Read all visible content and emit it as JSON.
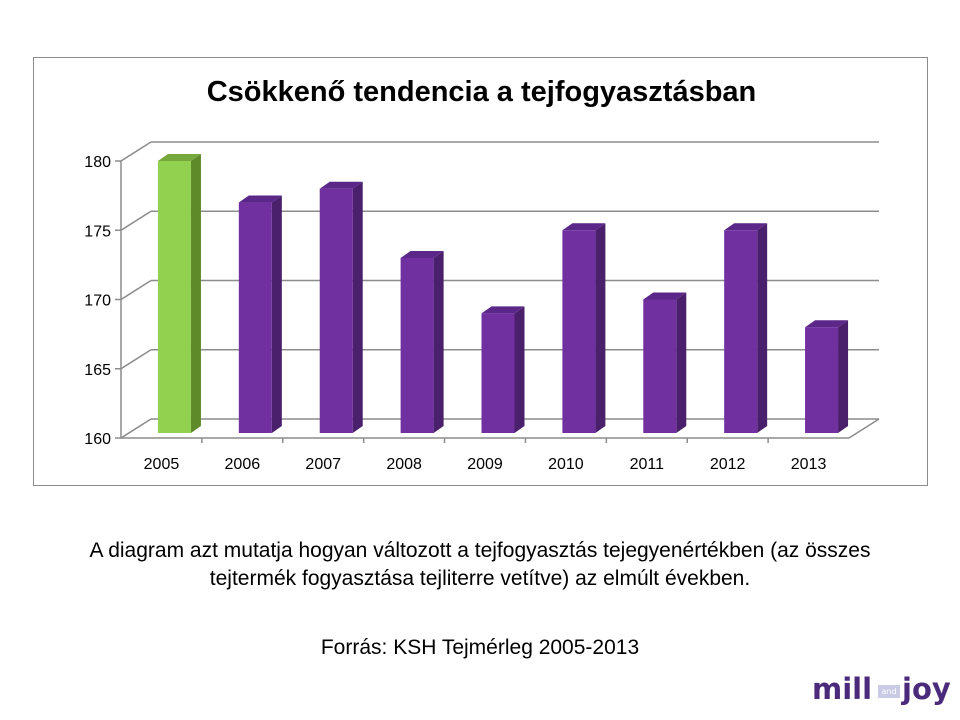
{
  "chart_data": {
    "type": "bar",
    "title": "Csökkenő tendencia a tejfogyasztásban",
    "categories": [
      "2005",
      "2006",
      "2007",
      "2008",
      "2009",
      "2010",
      "2011",
      "2012",
      "2013"
    ],
    "values": [
      180,
      177,
      178,
      173,
      169,
      175,
      170,
      175,
      168
    ],
    "xlabel": "",
    "ylabel": "",
    "ylim": [
      160,
      180
    ],
    "yticks": [
      160,
      165,
      170,
      175,
      180
    ],
    "grid": true,
    "legend": null,
    "style": "3d-column",
    "colors": {
      "highlight": "#92d050",
      "highlight_side": "#5e8a2a",
      "bar": "#7030a0",
      "bar_side": "#4a1f6c",
      "grid": "#8c8c8c"
    }
  },
  "slide": {
    "caption": "A diagram azt mutatja hogyan változott a tejfogyasztás tejegyenértékben (az összes tejtermék fogyasztása tejliterre vetítve) az elmúlt években.",
    "source": "Forrás: KSH Tejmérleg 2005-2013"
  },
  "logo": {
    "left": "mill",
    "middle": "and",
    "right": "joy"
  }
}
